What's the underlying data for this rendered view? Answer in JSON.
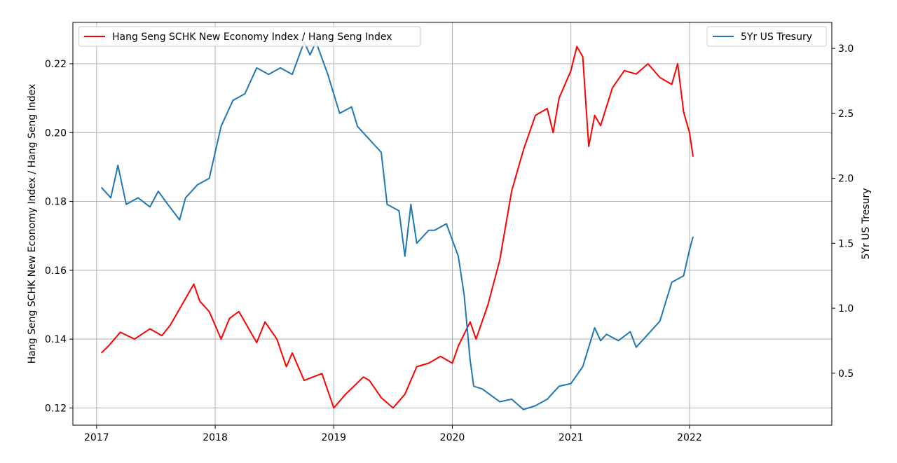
{
  "chart_data": {
    "type": "line",
    "title": "",
    "grid": true,
    "x_axis": {
      "range": [
        2016.8,
        2023.2
      ],
      "ticks": [
        2017,
        2018,
        2019,
        2020,
        2021,
        2022
      ],
      "tick_labels": [
        "2017",
        "2018",
        "2019",
        "2020",
        "2021",
        "2022"
      ]
    },
    "y_left": {
      "label": "Hang Seng SCHK New Economy Index / Hang Seng Index",
      "range": [
        0.115,
        0.232
      ],
      "ticks": [
        0.12,
        0.14,
        0.16,
        0.18,
        0.2,
        0.22
      ],
      "tick_labels": [
        "0.12",
        "0.14",
        "0.16",
        "0.18",
        "0.20",
        "0.22"
      ]
    },
    "y_right": {
      "label": "5Yr US Tresury",
      "range": [
        0.1,
        3.2
      ],
      "ticks": [
        0.5,
        1.0,
        1.5,
        2.0,
        2.5,
        3.0
      ],
      "tick_labels": [
        "0.5",
        "1.0",
        "1.5",
        "2.0",
        "2.5",
        "3.0"
      ]
    },
    "legend_left": {
      "position": "upper-left"
    },
    "legend_right": {
      "position": "upper-right"
    },
    "series": [
      {
        "name": "Hang Seng SCHK New Economy Index / Hang Seng Index",
        "axis": "left",
        "color": "#ff0000",
        "x": [
          2017.04,
          2017.1,
          2017.2,
          2017.32,
          2017.45,
          2017.55,
          2017.62,
          2017.72,
          2017.82,
          2017.87,
          2017.95,
          2018.05,
          2018.12,
          2018.2,
          2018.35,
          2018.42,
          2018.52,
          2018.6,
          2018.65,
          2018.75,
          2018.9,
          2019.0,
          2019.1,
          2019.25,
          2019.3,
          2019.4,
          2019.5,
          2019.6,
          2019.7,
          2019.8,
          2019.9,
          2020.0,
          2020.05,
          2020.15,
          2020.2,
          2020.3,
          2020.4,
          2020.5,
          2020.6,
          2020.7,
          2020.8,
          2020.85,
          2020.9,
          2021.0,
          2021.05,
          2021.1,
          2021.15,
          2021.2,
          2021.25,
          2021.35,
          2021.45,
          2021.55,
          2021.65,
          2021.75,
          2021.85,
          2021.9,
          2021.95,
          2022.0,
          2022.03
        ],
        "y": [
          0.136,
          0.138,
          0.142,
          0.14,
          0.143,
          0.141,
          0.144,
          0.15,
          0.156,
          0.151,
          0.148,
          0.14,
          0.146,
          0.148,
          0.139,
          0.145,
          0.14,
          0.132,
          0.136,
          0.128,
          0.13,
          0.12,
          0.124,
          0.129,
          0.128,
          0.123,
          0.12,
          0.124,
          0.132,
          0.133,
          0.135,
          0.133,
          0.138,
          0.145,
          0.14,
          0.15,
          0.163,
          0.183,
          0.195,
          0.205,
          0.207,
          0.2,
          0.21,
          0.218,
          0.225,
          0.222,
          0.196,
          0.205,
          0.202,
          0.213,
          0.218,
          0.217,
          0.22,
          0.216,
          0.214,
          0.22,
          0.206,
          0.2,
          0.193
        ]
      },
      {
        "name": "5Yr US Tresury",
        "axis": "right",
        "color": "#1f77b4",
        "x": [
          2017.04,
          2017.12,
          2017.18,
          2017.25,
          2017.35,
          2017.45,
          2017.52,
          2017.6,
          2017.7,
          2017.75,
          2017.85,
          2017.95,
          2018.05,
          2018.15,
          2018.25,
          2018.35,
          2018.45,
          2018.55,
          2018.65,
          2018.75,
          2018.8,
          2018.85,
          2018.95,
          2019.05,
          2019.15,
          2019.2,
          2019.3,
          2019.4,
          2019.45,
          2019.55,
          2019.6,
          2019.65,
          2019.7,
          2019.75,
          2019.8,
          2019.85,
          2019.95,
          2020.05,
          2020.1,
          2020.15,
          2020.18,
          2020.25,
          2020.4,
          2020.5,
          2020.6,
          2020.7,
          2020.8,
          2020.9,
          2021.0,
          2021.1,
          2021.15,
          2021.2,
          2021.25,
          2021.3,
          2021.4,
          2021.5,
          2021.55,
          2021.65,
          2021.75,
          2021.85,
          2021.95,
          2022.0,
          2022.03
        ],
        "y": [
          1.93,
          1.85,
          2.1,
          1.8,
          1.85,
          1.78,
          1.9,
          1.8,
          1.68,
          1.85,
          1.95,
          2.0,
          2.4,
          2.6,
          2.65,
          2.85,
          2.8,
          2.85,
          2.8,
          3.05,
          2.95,
          3.05,
          2.8,
          2.5,
          2.55,
          2.4,
          2.3,
          2.2,
          1.8,
          1.75,
          1.4,
          1.8,
          1.5,
          1.55,
          1.6,
          1.6,
          1.65,
          1.4,
          1.1,
          0.6,
          0.4,
          0.38,
          0.28,
          0.3,
          0.22,
          0.25,
          0.3,
          0.4,
          0.42,
          0.55,
          0.7,
          0.85,
          0.75,
          0.8,
          0.75,
          0.82,
          0.7,
          0.8,
          0.9,
          1.2,
          1.25,
          1.45,
          1.55
        ]
      }
    ]
  }
}
